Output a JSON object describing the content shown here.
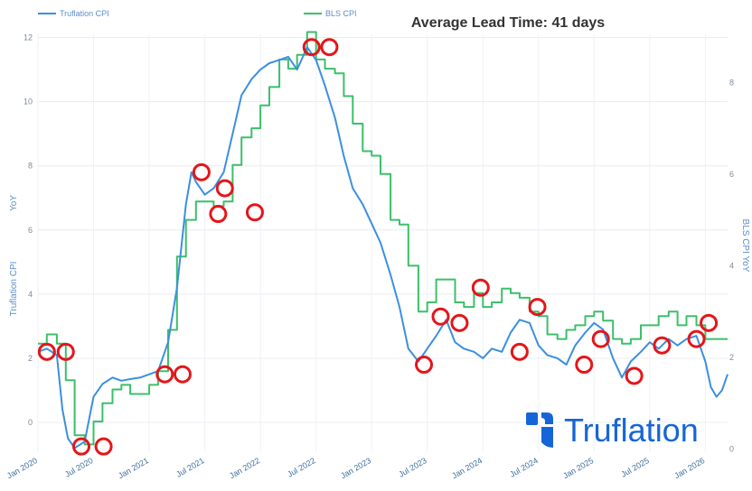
{
  "chart_data": {
    "type": "line",
    "title": "Average Lead Time: 41 days",
    "ylabel": "Truflation CPI",
    "ylabel_tag": "YoY",
    "y2label": "BLS CPI YoY",
    "ylim": [
      -0.9,
      12.1
    ],
    "yticks": [
      0,
      2,
      4,
      6,
      8,
      10,
      12
    ],
    "y2lim": [
      -0.05,
      9.05
    ],
    "y2ticks": [
      0,
      2,
      4,
      6,
      8
    ],
    "xlim": [
      2020.0,
      2026.2
    ],
    "xticks": [
      {
        "label": "Jan 2020",
        "x": 2020.0
      },
      {
        "label": "Jul 2020",
        "x": 2020.5
      },
      {
        "label": "Jan 2021",
        "x": 2021.0
      },
      {
        "label": "Jul 2021",
        "x": 2021.5
      },
      {
        "label": "Jan 2022",
        "x": 2022.0
      },
      {
        "label": "Jul 2022",
        "x": 2022.5
      },
      {
        "label": "Jan 2023",
        "x": 2023.0
      },
      {
        "label": "Jul 2023",
        "x": 2023.5
      },
      {
        "label": "Jan 2024",
        "x": 2024.0
      },
      {
        "label": "Jul 2024",
        "x": 2024.5
      },
      {
        "label": "Jan 2025",
        "x": 2025.0
      },
      {
        "label": "Jul 2025",
        "x": 2025.5
      },
      {
        "label": "Jan 2026",
        "x": 2026.0
      }
    ],
    "series": [
      {
        "name": "Truflation CPI",
        "axis": "left",
        "color": "#3b8fe0",
        "x": [
          2020.0,
          2020.08,
          2020.17,
          2020.22,
          2020.27,
          2020.33,
          2020.42,
          2020.5,
          2020.58,
          2020.67,
          2020.75,
          2020.83,
          2020.92,
          2021.0,
          2021.08,
          2021.17,
          2021.25,
          2021.33,
          2021.38,
          2021.42,
          2021.5,
          2021.58,
          2021.67,
          2021.75,
          2021.83,
          2021.92,
          2022.0,
          2022.08,
          2022.17,
          2022.25,
          2022.33,
          2022.42,
          2022.5,
          2022.58,
          2022.67,
          2022.75,
          2022.83,
          2022.92,
          2023.0,
          2023.08,
          2023.17,
          2023.25,
          2023.33,
          2023.42,
          2023.5,
          2023.58,
          2023.67,
          2023.75,
          2023.83,
          2023.92,
          2024.0,
          2024.08,
          2024.17,
          2024.25,
          2024.33,
          2024.42,
          2024.5,
          2024.58,
          2024.67,
          2024.75,
          2024.83,
          2024.92,
          2025.0,
          2025.08,
          2025.17,
          2025.25,
          2025.33,
          2025.42,
          2025.5,
          2025.58,
          2025.67,
          2025.75,
          2025.83,
          2025.92,
          2026.0,
          2026.05,
          2026.1,
          2026.15,
          2026.2
        ],
        "values": [
          2.2,
          2.3,
          2.1,
          0.4,
          -0.5,
          -0.8,
          -0.6,
          0.8,
          1.2,
          1.4,
          1.3,
          1.35,
          1.4,
          1.5,
          1.6,
          2.5,
          4.2,
          6.8,
          7.8,
          7.5,
          7.1,
          7.3,
          7.8,
          9.0,
          10.2,
          10.7,
          11.0,
          11.2,
          11.3,
          11.4,
          11.0,
          11.7,
          11.3,
          10.5,
          9.5,
          8.3,
          7.3,
          6.8,
          6.2,
          5.6,
          4.6,
          3.6,
          2.3,
          1.9,
          2.3,
          2.7,
          3.2,
          2.5,
          2.3,
          2.2,
          2.0,
          2.3,
          2.2,
          2.8,
          3.2,
          3.1,
          2.4,
          2.1,
          2.0,
          1.8,
          2.4,
          2.8,
          3.1,
          2.9,
          2.0,
          1.4,
          1.9,
          2.2,
          2.5,
          2.3,
          2.6,
          2.4,
          2.6,
          2.7,
          1.9,
          1.1,
          0.8,
          1.0,
          1.5
        ]
      },
      {
        "name": "BLS CPI",
        "axis": "right",
        "color": "#3cbf6a",
        "step": true,
        "x": [
          2020.0,
          2020.08,
          2020.17,
          2020.25,
          2020.33,
          2020.42,
          2020.5,
          2020.58,
          2020.67,
          2020.75,
          2020.83,
          2020.92,
          2021.0,
          2021.08,
          2021.17,
          2021.25,
          2021.33,
          2021.42,
          2021.5,
          2021.58,
          2021.67,
          2021.75,
          2021.83,
          2021.92,
          2022.0,
          2022.08,
          2022.17,
          2022.25,
          2022.33,
          2022.42,
          2022.5,
          2022.58,
          2022.67,
          2022.75,
          2022.83,
          2022.92,
          2023.0,
          2023.08,
          2023.17,
          2023.25,
          2023.33,
          2023.42,
          2023.5,
          2023.58,
          2023.67,
          2023.75,
          2023.83,
          2023.92,
          2024.0,
          2024.08,
          2024.17,
          2024.25,
          2024.33,
          2024.42,
          2024.5,
          2024.58,
          2024.67,
          2024.75,
          2024.83,
          2024.92,
          2025.0,
          2025.08,
          2025.17,
          2025.25,
          2025.33,
          2025.42,
          2025.5,
          2025.58,
          2025.67,
          2025.75,
          2025.83,
          2025.92,
          2026.0,
          2026.08,
          2026.2
        ],
        "values": [
          2.3,
          2.5,
          2.3,
          1.5,
          0.3,
          0.1,
          0.6,
          1.0,
          1.3,
          1.4,
          1.2,
          1.2,
          1.4,
          1.7,
          2.6,
          4.2,
          5.0,
          5.4,
          5.4,
          5.3,
          5.4,
          6.2,
          6.8,
          7.0,
          7.5,
          7.9,
          8.5,
          8.3,
          8.6,
          9.1,
          8.5,
          8.3,
          8.2,
          7.7,
          7.1,
          6.5,
          6.4,
          6.0,
          5.0,
          4.9,
          4.0,
          3.0,
          3.2,
          3.7,
          3.7,
          3.2,
          3.1,
          3.4,
          3.1,
          3.2,
          3.5,
          3.4,
          3.3,
          3.0,
          2.9,
          2.5,
          2.4,
          2.6,
          2.7,
          2.9,
          3.0,
          2.8,
          2.4,
          2.3,
          2.4,
          2.7,
          2.7,
          2.9,
          3.0,
          2.7,
          2.9,
          2.7,
          2.4,
          2.4,
          2.4
        ]
      }
    ],
    "annotations": {
      "type": "circle-markers",
      "color": "#e3161b",
      "points": [
        {
          "x": 2020.08,
          "y": 2.2
        },
        {
          "x": 2020.25,
          "y": 2.2
        },
        {
          "x": 2020.39,
          "y": -0.75
        },
        {
          "x": 2020.59,
          "y": -0.75
        },
        {
          "x": 2021.14,
          "y": 1.5
        },
        {
          "x": 2021.3,
          "y": 1.5
        },
        {
          "x": 2021.47,
          "y": 7.8
        },
        {
          "x": 2021.68,
          "y": 7.3
        },
        {
          "x": 2021.62,
          "y": 6.5
        },
        {
          "x": 2021.95,
          "y": 6.55
        },
        {
          "x": 2022.46,
          "y": 11.7
        },
        {
          "x": 2022.62,
          "y": 11.7
        },
        {
          "x": 2023.47,
          "y": 1.8
        },
        {
          "x": 2023.62,
          "y": 3.3
        },
        {
          "x": 2023.79,
          "y": 3.1
        },
        {
          "x": 2023.98,
          "y": 4.2
        },
        {
          "x": 2024.33,
          "y": 2.2
        },
        {
          "x": 2024.49,
          "y": 3.6
        },
        {
          "x": 2024.91,
          "y": 1.8
        },
        {
          "x": 2025.06,
          "y": 2.6
        },
        {
          "x": 2025.36,
          "y": 1.45
        },
        {
          "x": 2025.61,
          "y": 2.4
        },
        {
          "x": 2025.92,
          "y": 2.6
        },
        {
          "x": 2026.03,
          "y": 3.1
        }
      ]
    }
  },
  "legend": [
    {
      "label": "Truflation CPI",
      "color": "#3b8fe0"
    },
    {
      "label": "BLS CPI",
      "color": "#3cbf6a"
    }
  ],
  "brand": {
    "name": "Truflation",
    "color": "#1565d8"
  }
}
